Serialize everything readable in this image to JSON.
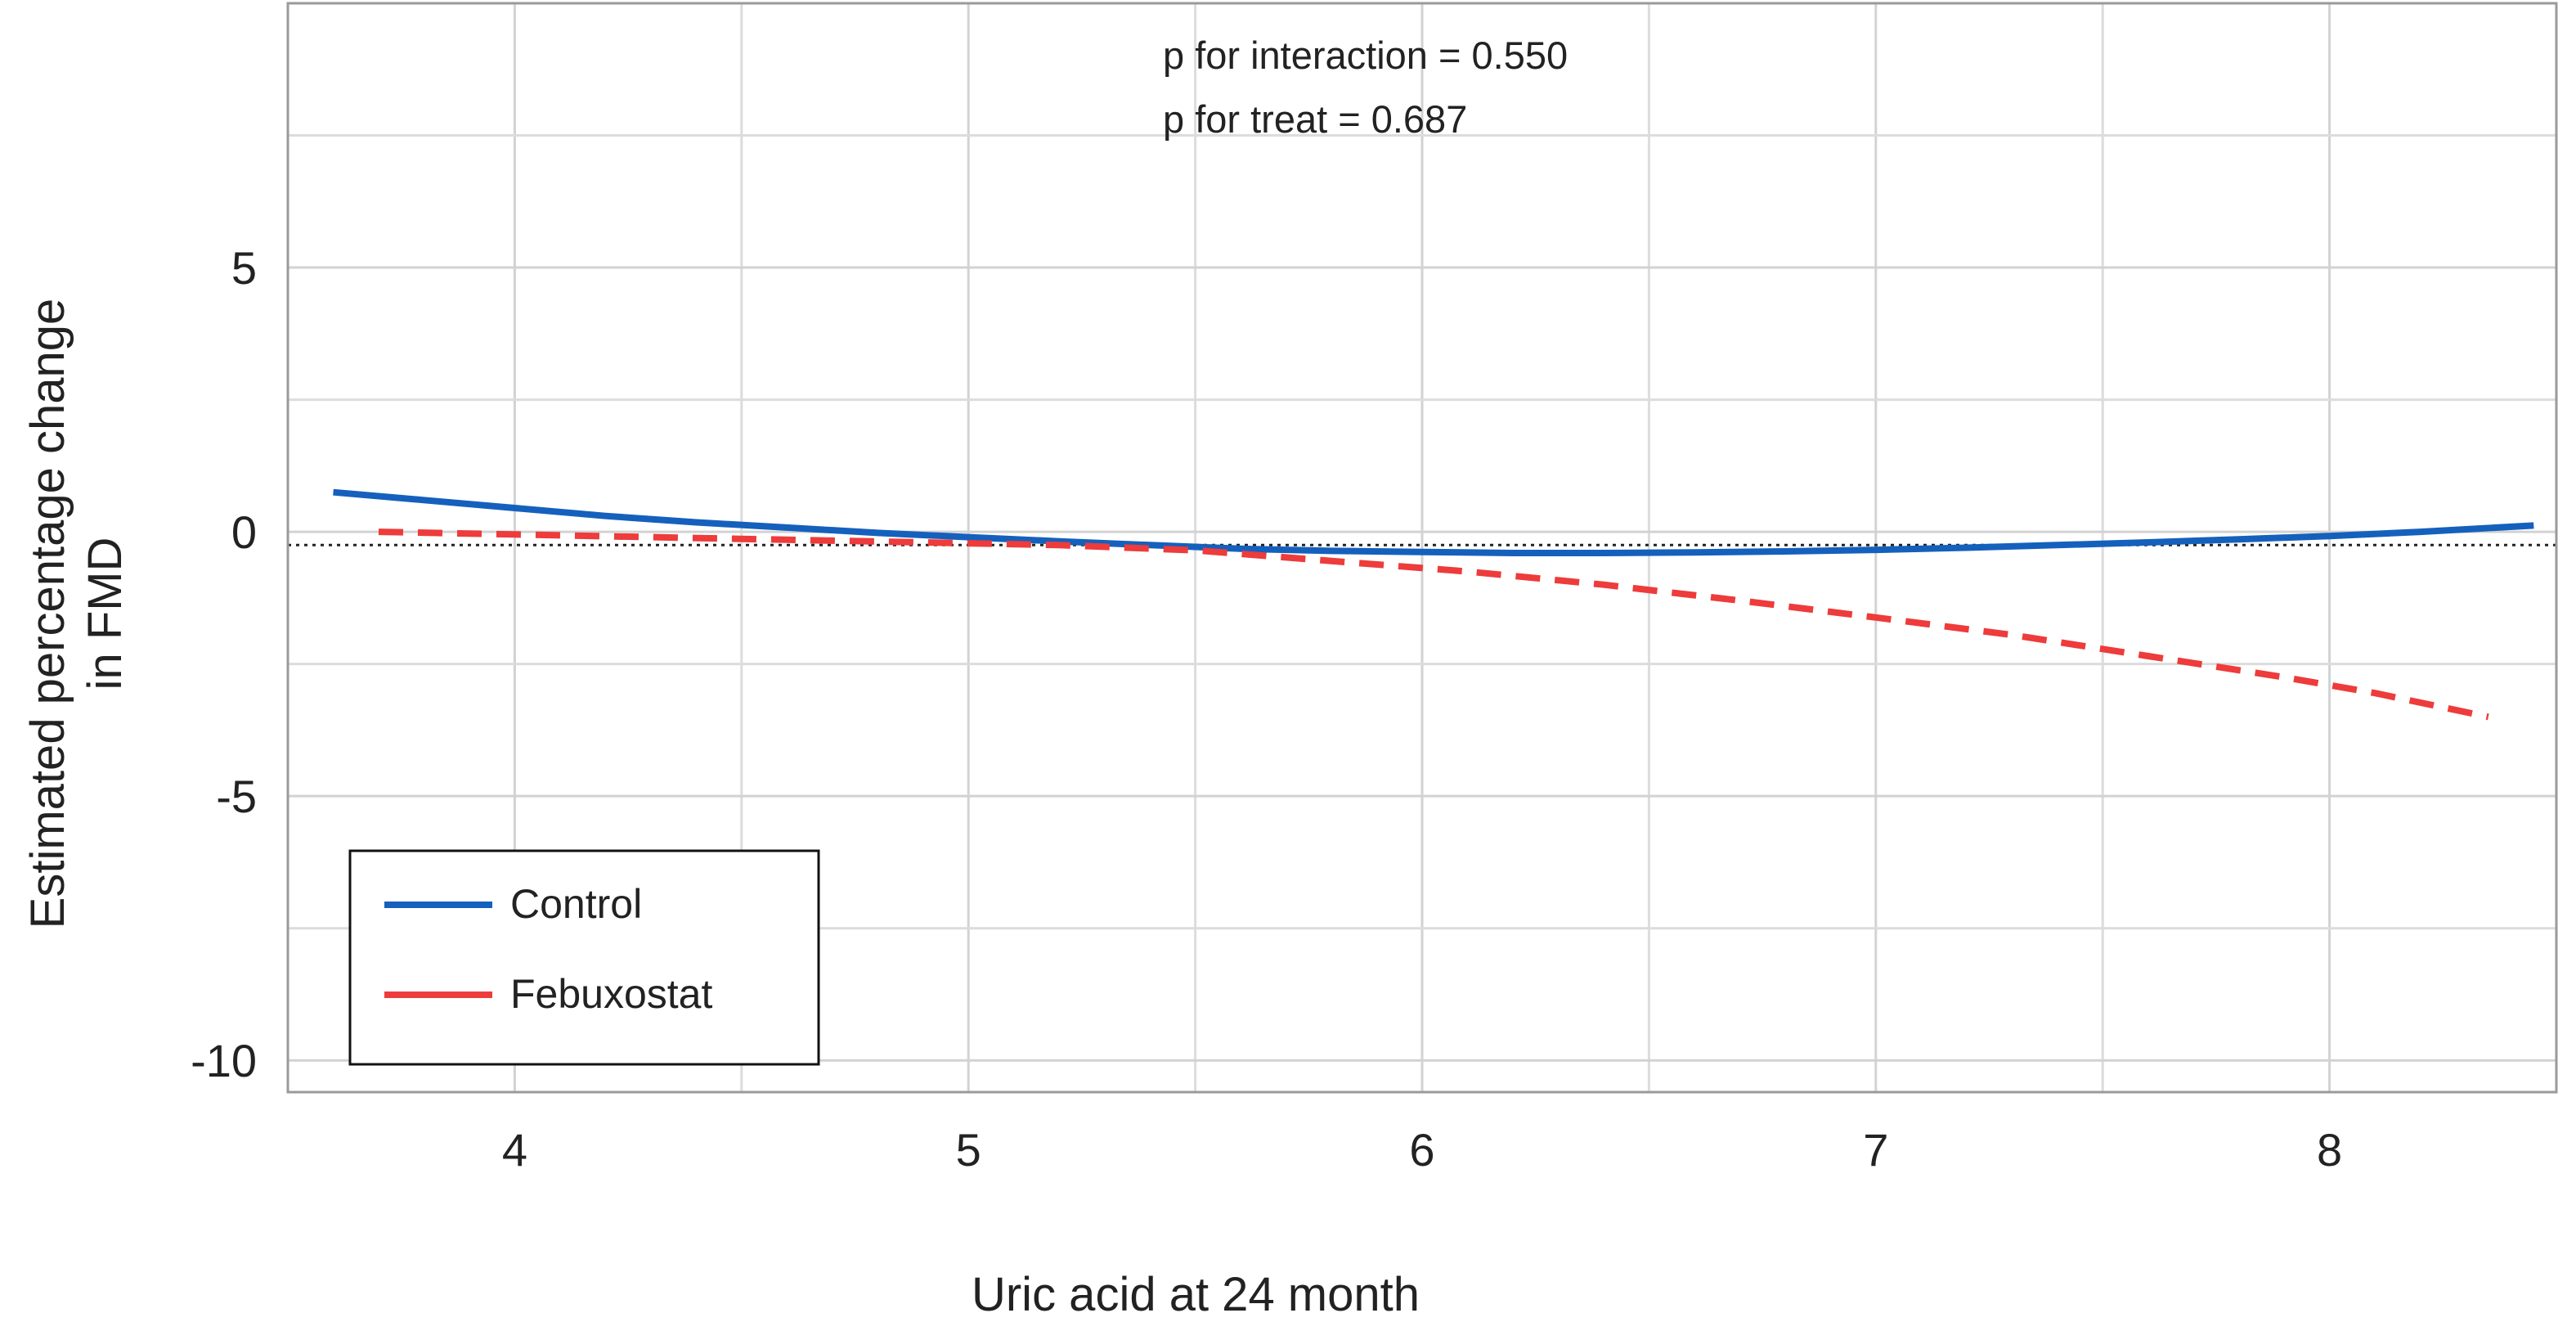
{
  "chart_data": {
    "type": "line",
    "title": "",
    "xlabel": "Uric acid  at 24 month",
    "ylabel_lines": [
      "Estimated percentage change",
      "in FMD"
    ],
    "xlim": [
      3.5,
      8.5
    ],
    "ylim": [
      -10.6,
      10
    ],
    "x_ticks": [
      4,
      5,
      6,
      7,
      8
    ],
    "x_tick_labels": [
      "4",
      "5",
      "6",
      "7",
      "8"
    ],
    "x_minor_grid": [
      3.5,
      4.5,
      5.5,
      6.5,
      7.5,
      8.5
    ],
    "y_ticks": [
      5,
      0,
      -5,
      -10
    ],
    "y_tick_labels": [
      "5",
      "0",
      "-5",
      "-10"
    ],
    "y_minor_grid": [
      7.5,
      2.5,
      -2.5,
      -7.5
    ],
    "reference_line_y": -0.25,
    "grid": true,
    "annotations": [
      "p for interaction = 0.550",
      "p for treat = 0.687"
    ],
    "legend_position": "bottom-left",
    "series": [
      {
        "name": "Control",
        "color": "#1560bd",
        "dash": "solid",
        "x": [
          3.6,
          3.8,
          4.0,
          4.2,
          4.4,
          4.6,
          4.8,
          5.0,
          5.2,
          5.4,
          5.6,
          5.8,
          6.0,
          6.2,
          6.4,
          6.6,
          6.8,
          7.0,
          7.2,
          7.4,
          7.6,
          7.8,
          8.0,
          8.2,
          8.45
        ],
        "values": [
          0.75,
          0.6,
          0.45,
          0.3,
          0.18,
          0.08,
          -0.02,
          -0.1,
          -0.18,
          -0.25,
          -0.32,
          -0.36,
          -0.38,
          -0.4,
          -0.4,
          -0.39,
          -0.37,
          -0.34,
          -0.3,
          -0.25,
          -0.2,
          -0.14,
          -0.08,
          0.0,
          0.12
        ]
      },
      {
        "name": "Febuxostat",
        "color": "#ee3b3b",
        "dash": "dashed",
        "x": [
          3.7,
          4.0,
          4.3,
          4.6,
          4.9,
          5.2,
          5.5,
          5.8,
          6.1,
          6.4,
          6.7,
          7.0,
          7.3,
          7.6,
          7.9,
          8.1,
          8.35
        ],
        "values": [
          0.0,
          -0.05,
          -0.1,
          -0.15,
          -0.2,
          -0.25,
          -0.35,
          -0.55,
          -0.75,
          -1.0,
          -1.3,
          -1.62,
          -1.95,
          -2.35,
          -2.75,
          -3.05,
          -3.5
        ]
      }
    ]
  }
}
